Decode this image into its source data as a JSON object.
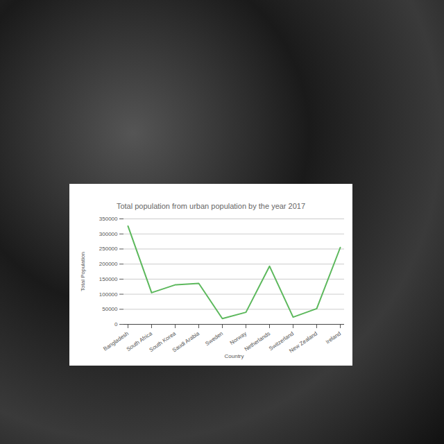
{
  "chart_data": {
    "type": "line",
    "title": "Total population from urban population by the year 2017",
    "x_label": "Country",
    "y_label": "Total Population",
    "categories": [
      "Bangladesh",
      "South Africa",
      "South Korea",
      "Saudi Arabia",
      "Sweden",
      "Norway",
      "Netherlands",
      "Switzerland",
      "New Zealand",
      "Ireland"
    ],
    "values": [
      326000,
      105000,
      131000,
      136000,
      19000,
      40000,
      193000,
      24000,
      52000,
      255000
    ],
    "color": "#5cb85c",
    "ylim": [
      0,
      350000
    ],
    "yticks": [
      0,
      50000,
      100000,
      150000,
      200000,
      250000,
      300000,
      350000
    ],
    "grid": true
  }
}
